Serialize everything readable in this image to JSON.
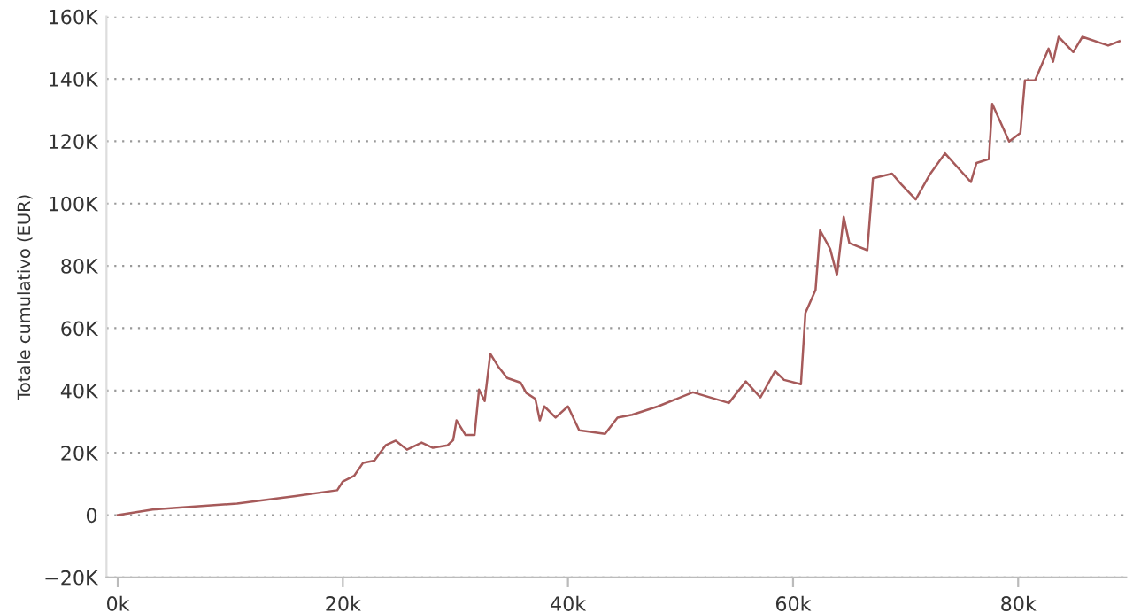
{
  "chart_data": {
    "type": "line",
    "ylabel": "Totale cumulativo (EUR)",
    "x": [
      0,
      3100,
      5500,
      10600,
      15800,
      19500,
      20000,
      21000,
      21800,
      22800,
      23800,
      24700,
      25700,
      27000,
      28000,
      29300,
      29800,
      30100,
      30900,
      31700,
      32100,
      32600,
      33100,
      33800,
      34600,
      35800,
      36300,
      37100,
      37500,
      37900,
      38900,
      40000,
      41000,
      43300,
      44400,
      45700,
      48000,
      51100,
      54300,
      55800,
      57100,
      58400,
      59200,
      60700,
      61100,
      62000,
      62400,
      63300,
      63900,
      64500,
      65000,
      66600,
      67100,
      68800,
      69600,
      70900,
      72200,
      73500,
      75800,
      76300,
      77400,
      77700,
      79200,
      80200,
      80600,
      81500,
      82700,
      83100,
      83600,
      84900,
      85700,
      88000,
      89000
    ],
    "series": [
      {
        "color": "#a65a5a",
        "values": [
          0,
          1800,
          2400,
          3700,
          6100,
          8000,
          10800,
          12600,
          16800,
          17500,
          22400,
          23900,
          21000,
          23300,
          21600,
          22400,
          24100,
          30400,
          25700,
          25700,
          40300,
          36600,
          51800,
          47700,
          44000,
          42500,
          39200,
          37300,
          30400,
          34900,
          31300,
          34900,
          27200,
          26100,
          31300,
          32200,
          34900,
          39400,
          36000,
          42900,
          37800,
          46200,
          43400,
          42000,
          64900,
          72300,
          91400,
          85400,
          77000,
          95700,
          87300,
          85000,
          108100,
          109600,
          106200,
          101300,
          109600,
          116100,
          106900,
          113000,
          114300,
          132000,
          119900,
          122700,
          139500,
          139500,
          149700,
          145500,
          153500,
          148600,
          153500,
          150700,
          152100
        ]
      }
    ],
    "xlim": [
      -1000,
      89600
    ],
    "ylim": [
      -20000,
      160000
    ],
    "xticks": [
      {
        "value": 0,
        "label": "0k"
      },
      {
        "value": 20000,
        "label": "20k"
      },
      {
        "value": 40000,
        "label": "40k"
      },
      {
        "value": 60000,
        "label": "60k"
      },
      {
        "value": 80000,
        "label": "80k"
      }
    ],
    "yticks": [
      {
        "value": -20000,
        "label": "−20K"
      },
      {
        "value": 0,
        "label": "0"
      },
      {
        "value": 20000,
        "label": "20K"
      },
      {
        "value": 40000,
        "label": "40K"
      },
      {
        "value": 60000,
        "label": "60K"
      },
      {
        "value": 80000,
        "label": "80K"
      },
      {
        "value": 100000,
        "label": "100K"
      },
      {
        "value": 120000,
        "label": "120K"
      },
      {
        "value": 140000,
        "label": "140K"
      },
      {
        "value": 160000,
        "label": "160K"
      }
    ],
    "grid": "y"
  }
}
